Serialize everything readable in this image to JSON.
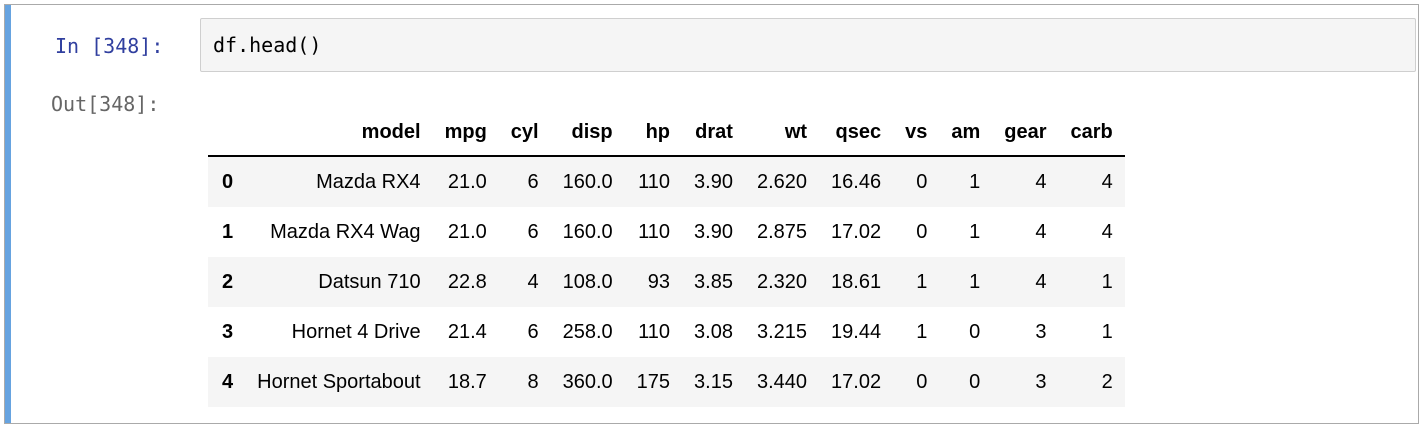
{
  "cell": {
    "in_prompt": "In [348]:",
    "out_prompt": "Out[348]:",
    "code": "df.head()"
  },
  "table": {
    "columns": [
      "model",
      "mpg",
      "cyl",
      "disp",
      "hp",
      "drat",
      "wt",
      "qsec",
      "vs",
      "am",
      "gear",
      "carb"
    ],
    "rows": [
      {
        "index": "0",
        "cells": [
          "Mazda RX4",
          "21.0",
          "6",
          "160.0",
          "110",
          "3.90",
          "2.620",
          "16.46",
          "0",
          "1",
          "4",
          "4"
        ]
      },
      {
        "index": "1",
        "cells": [
          "Mazda RX4 Wag",
          "21.0",
          "6",
          "160.0",
          "110",
          "3.90",
          "2.875",
          "17.02",
          "0",
          "1",
          "4",
          "4"
        ]
      },
      {
        "index": "2",
        "cells": [
          "Datsun 710",
          "22.8",
          "4",
          "108.0",
          "93",
          "3.85",
          "2.320",
          "18.61",
          "1",
          "1",
          "4",
          "1"
        ]
      },
      {
        "index": "3",
        "cells": [
          "Hornet 4 Drive",
          "21.4",
          "6",
          "258.0",
          "110",
          "3.08",
          "3.215",
          "19.44",
          "1",
          "0",
          "3",
          "1"
        ]
      },
      {
        "index": "4",
        "cells": [
          "Hornet Sportabout",
          "18.7",
          "8",
          "360.0",
          "175",
          "3.15",
          "3.440",
          "17.02",
          "0",
          "0",
          "3",
          "2"
        ]
      }
    ]
  },
  "colors": {
    "selected_cell_bar": "#66a3e0",
    "in_prompt": "#303f9f",
    "out_prompt": "#666666",
    "input_background": "#f5f5f5",
    "odd_row_background": "#f5f5f5"
  }
}
